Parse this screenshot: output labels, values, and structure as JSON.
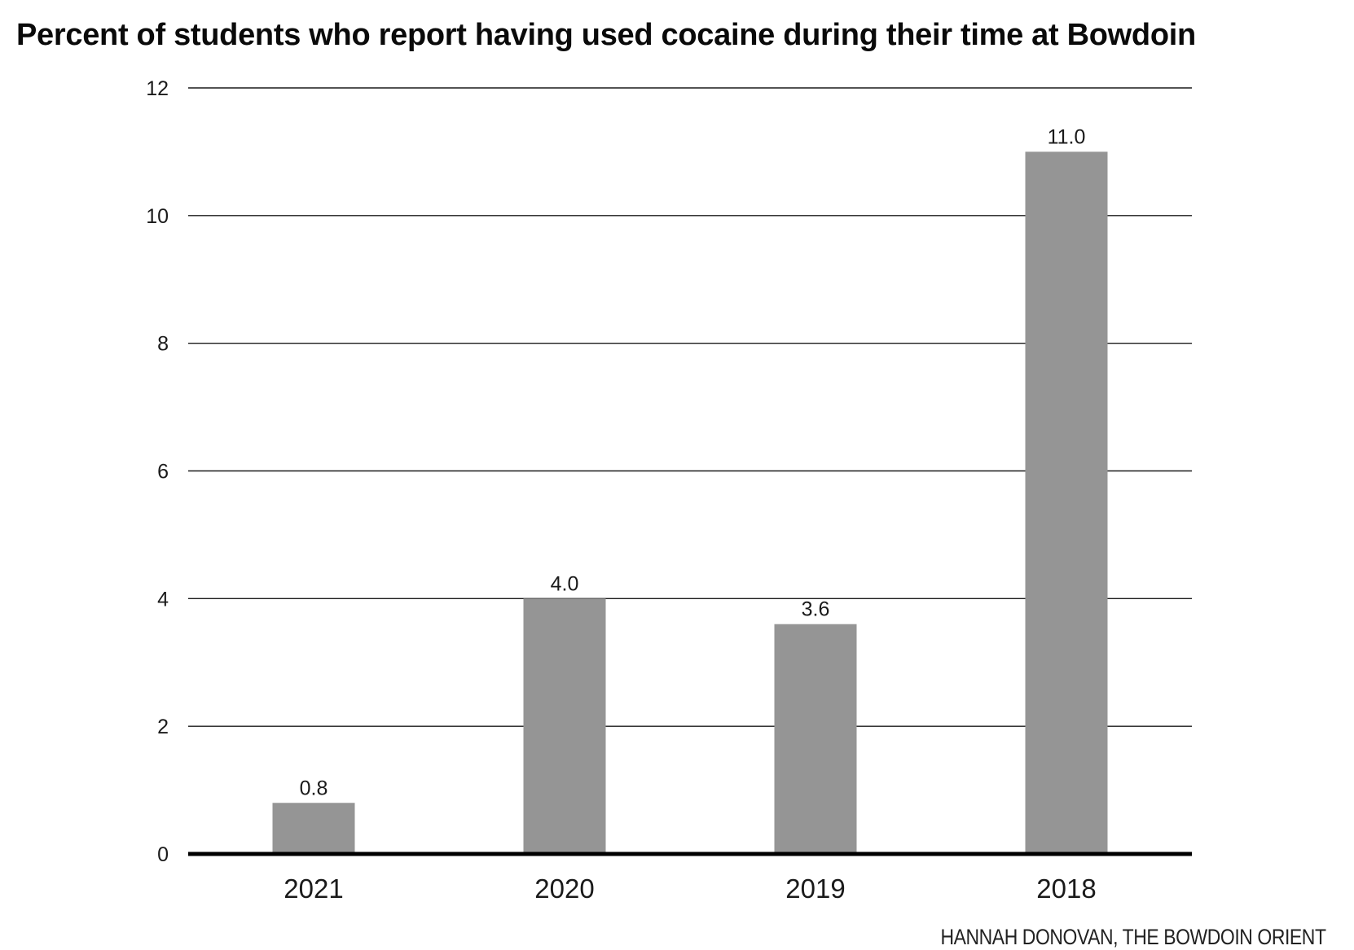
{
  "chart_data": {
    "type": "bar",
    "title": "Percent of students who report having used cocaine during their time at Bowdoin",
    "xlabel": "",
    "ylabel": "",
    "categories": [
      "2021",
      "2020",
      "2019",
      "2018"
    ],
    "values": [
      0.8,
      4.0,
      3.6,
      11.0
    ],
    "value_labels": [
      "0.8",
      "4.0",
      "3.6",
      "11.0"
    ],
    "ylim": [
      0,
      12
    ],
    "yticks": [
      0,
      2,
      4,
      6,
      8,
      10,
      12
    ],
    "grid": true,
    "legend": "none",
    "bar_color": "#959595",
    "gridline_color": "#1a1a1a",
    "baseline_color": "#000000"
  },
  "credit": "HANNAH DONOVAN, THE BOWDOIN ORIENT"
}
